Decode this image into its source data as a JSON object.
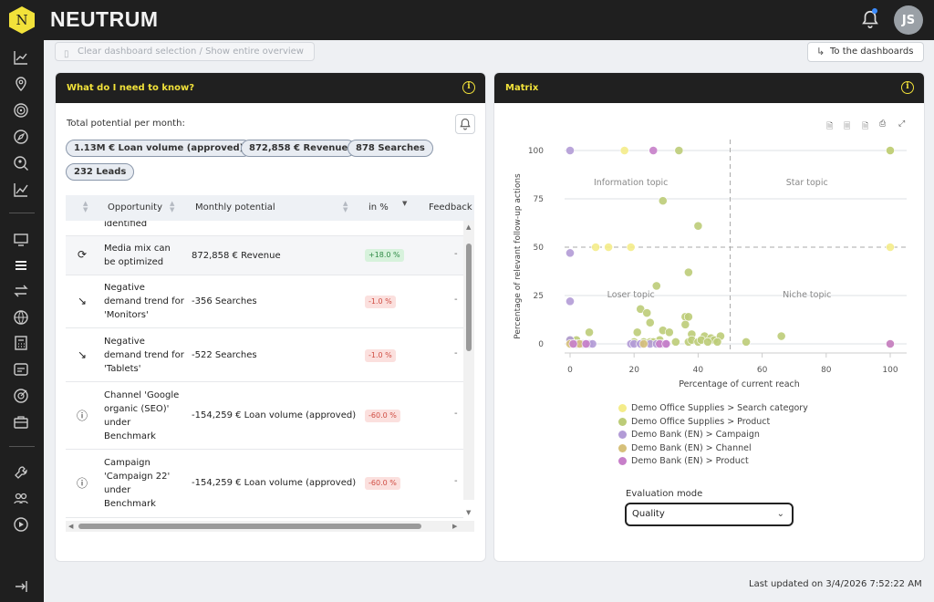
{
  "app": {
    "brand": "NEUTRUM",
    "logo_letter": "N",
    "user_initials": "JS"
  },
  "toolbar": {
    "clear_label": "Clear dashboard selection / Show entire overview",
    "to_dashboards_label": "To the dashboards"
  },
  "know_panel": {
    "title": "What do I need to know?",
    "total_label": "Total potential per month:",
    "pills": [
      "1.13M € Loan volume (approved)",
      "872,858 € Revenue",
      "878 Searches",
      "232 Leads"
    ],
    "columns": [
      "Opportunity",
      "Monthly potential",
      "in %",
      "Feedback"
    ],
    "rows": [
      {
        "opportunity": "identified",
        "potential": "",
        "pct": "",
        "feedback": "",
        "icon": "partial-row"
      },
      {
        "opportunity": "Media mix can be optimized",
        "potential": "872,858 € Revenue",
        "pct": "+18.0 %",
        "feedback": "-",
        "icon": "mix-icon"
      },
      {
        "opportunity": "Negative demand trend for 'Monitors'",
        "potential": "-356 Searches",
        "pct": "-1.0 %",
        "feedback": "-",
        "icon": "trend-down-icon"
      },
      {
        "opportunity": "Negative demand trend for 'Tablets'",
        "potential": "-522 Searches",
        "pct": "-1.0 %",
        "feedback": "-",
        "icon": "trend-down-icon"
      },
      {
        "opportunity": "Channel 'Google organic (SEO)' under Benchmark",
        "potential": "-154,259 € Loan volume (approved)",
        "pct": "-60.0 %",
        "feedback": "-",
        "icon": "alert-icon"
      },
      {
        "opportunity": "Campaign 'Campaign 22' under Benchmark",
        "potential": "-154,259 € Loan volume (approved)",
        "pct": "-60.0 %",
        "feedback": "-",
        "icon": "alert-icon"
      }
    ]
  },
  "matrix_panel": {
    "title": "Matrix",
    "evaluation_label": "Evaluation mode",
    "evaluation_value": "Quality"
  },
  "chart_data": {
    "type": "scatter",
    "xlabel": "Percentage of current reach",
    "ylabel": "Percentage of relevant follow-up actions",
    "xlim": [
      0,
      100
    ],
    "ylim": [
      0,
      100
    ],
    "x_ticks": [
      "0",
      "20",
      "40",
      "60",
      "80",
      "100"
    ],
    "y_ticks": [
      "0",
      "25",
      "50",
      "75",
      "100"
    ],
    "quadrants": [
      "Information topic",
      "Star topic",
      "Loser topic",
      "Niche topic"
    ],
    "threshold_x": 50,
    "threshold_y": 50,
    "legend_position": "bottom",
    "series": [
      {
        "name": "Demo Office Supplies > Search category",
        "color": "#f4ec8a",
        "points": [
          [
            17,
            100
          ],
          [
            100,
            100
          ],
          [
            8,
            50
          ],
          [
            12,
            50
          ],
          [
            19,
            50
          ],
          [
            100,
            50
          ],
          [
            2,
            0
          ]
        ]
      },
      {
        "name": "Demo Office Supplies > Product",
        "color": "#bccc78",
        "points": [
          [
            34,
            100
          ],
          [
            100,
            100
          ],
          [
            29,
            74
          ],
          [
            40,
            61
          ],
          [
            37,
            37
          ],
          [
            27,
            30
          ],
          [
            22,
            18
          ],
          [
            24,
            16
          ],
          [
            25,
            11
          ],
          [
            36,
            14
          ],
          [
            37,
            14
          ],
          [
            36,
            10
          ],
          [
            29,
            7
          ],
          [
            31,
            6
          ],
          [
            38,
            5
          ],
          [
            42,
            4
          ],
          [
            44,
            3
          ],
          [
            45,
            2
          ],
          [
            47,
            4
          ],
          [
            55,
            1
          ],
          [
            66,
            4
          ],
          [
            21,
            6
          ],
          [
            6,
            6
          ],
          [
            2,
            2
          ],
          [
            28,
            2
          ],
          [
            33,
            1
          ],
          [
            37,
            1
          ],
          [
            38,
            2
          ],
          [
            40,
            1
          ],
          [
            41,
            2
          ],
          [
            43,
            1
          ],
          [
            46,
            1
          ],
          [
            20,
            1
          ],
          [
            23,
            1
          ],
          [
            25,
            1
          ],
          [
            26,
            1
          ],
          [
            0,
            2
          ]
        ]
      },
      {
        "name": "Demo Bank (EN) > Campaign",
        "color": "#b29bd6",
        "points": [
          [
            0,
            100
          ],
          [
            0,
            47
          ],
          [
            0,
            22
          ],
          [
            0,
            2
          ],
          [
            1,
            0
          ],
          [
            2,
            0
          ],
          [
            3,
            0
          ],
          [
            4,
            0
          ],
          [
            5,
            0
          ],
          [
            6,
            0
          ],
          [
            7,
            0
          ],
          [
            19,
            0
          ],
          [
            20,
            0
          ],
          [
            22,
            0
          ],
          [
            25,
            0
          ],
          [
            27,
            0
          ],
          [
            29,
            0
          ],
          [
            30,
            0
          ]
        ]
      },
      {
        "name": "Demo Bank (EN) > Channel",
        "color": "#d6c07a",
        "points": [
          [
            0,
            0
          ],
          [
            3,
            0
          ],
          [
            100,
            0
          ],
          [
            23,
            0
          ]
        ]
      },
      {
        "name": "Demo Bank (EN) > Product",
        "color": "#c77fc9",
        "points": [
          [
            26,
            100
          ],
          [
            1,
            0
          ],
          [
            5,
            0
          ],
          [
            100,
            0
          ],
          [
            28,
            0
          ],
          [
            30,
            0
          ]
        ]
      }
    ]
  },
  "footer": {
    "last_updated": "Last updated on 3/4/2026 7:52:22 AM"
  }
}
